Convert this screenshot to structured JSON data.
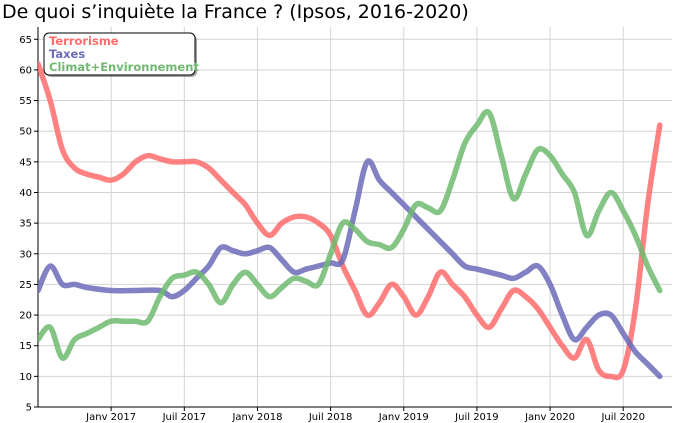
{
  "chart_data": {
    "type": "line",
    "title": "De quoi s’inquiète la France ? (Ipsos, 2016-2020)",
    "xlabel": "",
    "ylabel": "",
    "ylim": [
      5,
      67
    ],
    "yticks": [
      5,
      10,
      15,
      20,
      25,
      30,
      35,
      40,
      45,
      50,
      55,
      60,
      65
    ],
    "xlim": [
      "2016-07",
      "2020-11"
    ],
    "xticks": [
      {
        "date": "2017-01",
        "label": "Janv 2017"
      },
      {
        "date": "2017-07",
        "label": "Juil 2017"
      },
      {
        "date": "2018-01",
        "label": "Janv 2018"
      },
      {
        "date": "2018-07",
        "label": "Juil 2018"
      },
      {
        "date": "2019-01",
        "label": "Janv 2019"
      },
      {
        "date": "2019-07",
        "label": "Juil 2019"
      },
      {
        "date": "2020-01",
        "label": "Janv 2020"
      },
      {
        "date": "2020-07",
        "label": "Juil 2020"
      }
    ],
    "grid": true,
    "legend_position": "top-left",
    "series": [
      {
        "name": "Terrorisme",
        "color": "#ff6b6b",
        "points": [
          [
            "2016-07",
            61
          ],
          [
            "2016-08",
            55
          ],
          [
            "2016-09",
            47
          ],
          [
            "2016-10",
            44
          ],
          [
            "2016-11",
            43
          ],
          [
            "2016-12",
            42.5
          ],
          [
            "2017-01",
            42
          ],
          [
            "2017-02",
            43
          ],
          [
            "2017-03",
            45
          ],
          [
            "2017-04",
            46
          ],
          [
            "2017-05",
            45.5
          ],
          [
            "2017-06",
            45
          ],
          [
            "2017-07",
            45
          ],
          [
            "2017-08",
            45
          ],
          [
            "2017-09",
            44
          ],
          [
            "2017-10",
            42
          ],
          [
            "2017-11",
            40
          ],
          [
            "2017-12",
            38
          ],
          [
            "2018-01",
            35
          ],
          [
            "2018-02",
            33
          ],
          [
            "2018-03",
            35
          ],
          [
            "2018-04",
            36
          ],
          [
            "2018-05",
            36
          ],
          [
            "2018-06",
            35
          ],
          [
            "2018-07",
            33
          ],
          [
            "2018-08",
            28
          ],
          [
            "2018-09",
            24
          ],
          [
            "2018-10",
            20
          ],
          [
            "2018-11",
            22
          ],
          [
            "2018-12",
            25
          ],
          [
            "2019-01",
            23
          ],
          [
            "2019-02",
            20
          ],
          [
            "2019-03",
            23
          ],
          [
            "2019-04",
            27
          ],
          [
            "2019-05",
            25
          ],
          [
            "2019-06",
            23
          ],
          [
            "2019-07",
            20
          ],
          [
            "2019-08",
            18
          ],
          [
            "2019-09",
            21
          ],
          [
            "2019-10",
            24
          ],
          [
            "2019-11",
            23
          ],
          [
            "2019-12",
            21
          ],
          [
            "2020-01",
            18
          ],
          [
            "2020-02",
            15
          ],
          [
            "2020-03",
            13
          ],
          [
            "2020-04",
            16
          ],
          [
            "2020-05",
            11
          ],
          [
            "2020-06",
            10
          ],
          [
            "2020-07",
            11
          ],
          [
            "2020-08",
            21
          ],
          [
            "2020-09",
            38
          ],
          [
            "2020-10",
            51
          ]
        ]
      },
      {
        "name": "Taxes",
        "color": "#6b6bb8",
        "points": [
          [
            "2016-07",
            24
          ],
          [
            "2016-08",
            28
          ],
          [
            "2016-09",
            25
          ],
          [
            "2016-10",
            25
          ],
          [
            "2016-11",
            24.5
          ],
          [
            "2017-01",
            24
          ],
          [
            "2017-03",
            24
          ],
          [
            "2017-05",
            24
          ],
          [
            "2017-06",
            23
          ],
          [
            "2017-07",
            24
          ],
          [
            "2017-08",
            26
          ],
          [
            "2017-09",
            28
          ],
          [
            "2017-10",
            31
          ],
          [
            "2017-11",
            30.5
          ],
          [
            "2017-12",
            30
          ],
          [
            "2018-01",
            30.5
          ],
          [
            "2018-02",
            31
          ],
          [
            "2018-03",
            29
          ],
          [
            "2018-04",
            27
          ],
          [
            "2018-05",
            27.5
          ],
          [
            "2018-06",
            28
          ],
          [
            "2018-07",
            28.5
          ],
          [
            "2018-08",
            29
          ],
          [
            "2018-09",
            37
          ],
          [
            "2018-10",
            45
          ],
          [
            "2018-11",
            42
          ],
          [
            "2018-12",
            40
          ],
          [
            "2019-01",
            38
          ],
          [
            "2019-02",
            36
          ],
          [
            "2019-03",
            34
          ],
          [
            "2019-04",
            32
          ],
          [
            "2019-05",
            30
          ],
          [
            "2019-06",
            28
          ],
          [
            "2019-07",
            27.5
          ],
          [
            "2019-08",
            27
          ],
          [
            "2019-09",
            26.5
          ],
          [
            "2019-10",
            26
          ],
          [
            "2019-11",
            27
          ],
          [
            "2019-12",
            28
          ],
          [
            "2020-01",
            25
          ],
          [
            "2020-02",
            20
          ],
          [
            "2020-03",
            16
          ],
          [
            "2020-04",
            18
          ],
          [
            "2020-05",
            20
          ],
          [
            "2020-06",
            20
          ],
          [
            "2020-07",
            17
          ],
          [
            "2020-08",
            14
          ],
          [
            "2020-09",
            12
          ],
          [
            "2020-10",
            10
          ]
        ]
      },
      {
        "name": "Climat+Environnement",
        "color": "#6fba6f",
        "points": [
          [
            "2016-07",
            16
          ],
          [
            "2016-08",
            18
          ],
          [
            "2016-09",
            13
          ],
          [
            "2016-10",
            16
          ],
          [
            "2016-11",
            17
          ],
          [
            "2016-12",
            18
          ],
          [
            "2017-01",
            19
          ],
          [
            "2017-02",
            19
          ],
          [
            "2017-03",
            19
          ],
          [
            "2017-04",
            19
          ],
          [
            "2017-05",
            23
          ],
          [
            "2017-06",
            26
          ],
          [
            "2017-07",
            26.5
          ],
          [
            "2017-08",
            27
          ],
          [
            "2017-09",
            25
          ],
          [
            "2017-10",
            22
          ],
          [
            "2017-11",
            25
          ],
          [
            "2017-12",
            27
          ],
          [
            "2018-01",
            25
          ],
          [
            "2018-02",
            23
          ],
          [
            "2018-03",
            24.5
          ],
          [
            "2018-04",
            26
          ],
          [
            "2018-05",
            25.5
          ],
          [
            "2018-06",
            25
          ],
          [
            "2018-07",
            30
          ],
          [
            "2018-08",
            35
          ],
          [
            "2018-09",
            34
          ],
          [
            "2018-10",
            32
          ],
          [
            "2018-11",
            31.5
          ],
          [
            "2018-12",
            31
          ],
          [
            "2019-01",
            34
          ],
          [
            "2019-02",
            38
          ],
          [
            "2019-03",
            37.5
          ],
          [
            "2019-04",
            37
          ],
          [
            "2019-05",
            42
          ],
          [
            "2019-06",
            48
          ],
          [
            "2019-07",
            51
          ],
          [
            "2019-08",
            53
          ],
          [
            "2019-09",
            46
          ],
          [
            "2019-10",
            39
          ],
          [
            "2019-11",
            43
          ],
          [
            "2019-12",
            47
          ],
          [
            "2020-01",
            46
          ],
          [
            "2020-02",
            43
          ],
          [
            "2020-03",
            40
          ],
          [
            "2020-04",
            33
          ],
          [
            "2020-05",
            37
          ],
          [
            "2020-06",
            40
          ],
          [
            "2020-07",
            37
          ],
          [
            "2020-08",
            33
          ],
          [
            "2020-09",
            28
          ],
          [
            "2020-10",
            24
          ]
        ]
      }
    ]
  }
}
